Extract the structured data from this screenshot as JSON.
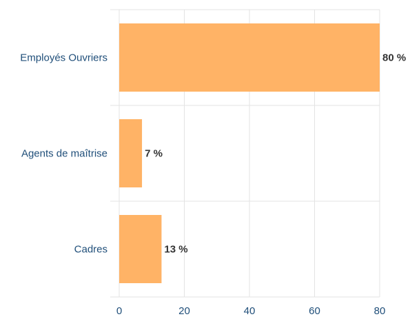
{
  "chart_data": {
    "type": "bar",
    "orientation": "horizontal",
    "categories": [
      "Employés Ouvriers",
      "Agents de maîtrise",
      "Cadres"
    ],
    "values": [
      80,
      7,
      13
    ],
    "value_labels": [
      "80 %",
      "7 %",
      "13 %"
    ],
    "xlim": [
      0,
      80
    ],
    "x_ticks": [
      0,
      20,
      40,
      60,
      80
    ],
    "x_tick_labels": [
      "0",
      "20",
      "40",
      "60",
      "80"
    ],
    "grid": true,
    "legend": "none",
    "title": "",
    "xlabel": "",
    "ylabel": "",
    "colors": {
      "bar": "#ffb366",
      "bar_edge": "#f5a855",
      "grid": "#e3e3e3",
      "axis_text": "#1f4e79",
      "label_text": "#333333"
    }
  }
}
